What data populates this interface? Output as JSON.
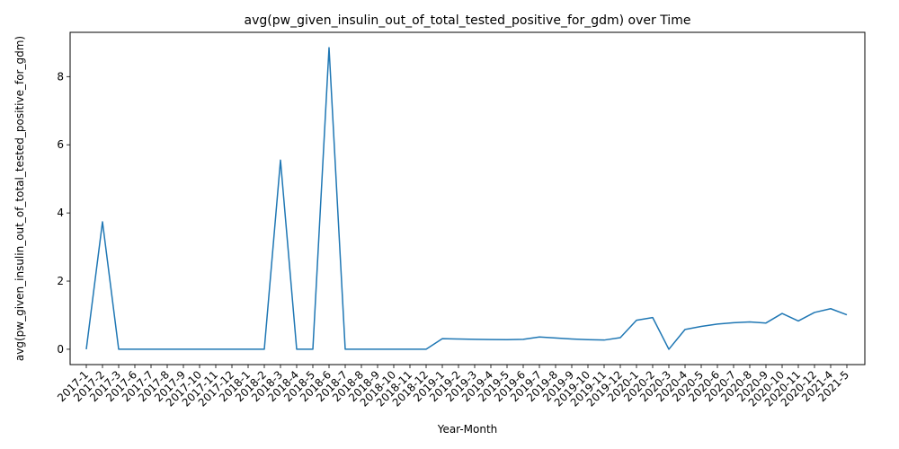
{
  "chart_data": {
    "type": "line",
    "title": "avg(pw_given_insulin_out_of_total_tested_positive_for_gdm) over Time",
    "xlabel": "Year-Month",
    "ylabel": "avg(pw_given_insulin_out_of_total_tested_positive_for_gdm)",
    "ylim": [
      -0.45,
      9.3
    ],
    "yticks": [
      0,
      2,
      4,
      6,
      8
    ],
    "grid": false,
    "color": "#1f77b4",
    "categories": [
      "2017-1",
      "2017-2",
      "2017-3",
      "2017-6",
      "2017-7",
      "2017-8",
      "2017-9",
      "2017-10",
      "2017-11",
      "2017-12",
      "2018-1",
      "2018-2",
      "2018-3",
      "2018-4",
      "2018-5",
      "2018-6",
      "2018-7",
      "2018-8",
      "2018-9",
      "2018-10",
      "2018-11",
      "2018-12",
      "2019-1",
      "2019-2",
      "2019-3",
      "2019-4",
      "2019-5",
      "2019-6",
      "2019-7",
      "2019-8",
      "2019-9",
      "2019-10",
      "2019-11",
      "2019-12",
      "2020-1",
      "2020-2",
      "2020-3",
      "2020-4",
      "2020-5",
      "2020-6",
      "2020-7",
      "2020-8",
      "2020-9",
      "2020-10",
      "2020-11",
      "2020-12",
      "2021-4",
      "2021-5"
    ],
    "values": [
      0,
      3.74,
      0,
      0,
      0,
      0,
      0,
      0,
      0,
      0,
      0,
      0,
      5.55,
      0,
      0,
      8.85,
      0,
      0,
      0,
      0,
      0,
      0,
      0.31,
      0.3,
      0.29,
      0.285,
      0.28,
      0.29,
      0.36,
      0.33,
      0.3,
      0.28,
      0.27,
      0.34,
      0.85,
      0.93,
      0,
      0.58,
      0.67,
      0.74,
      0.78,
      0.8,
      0.77,
      1.05,
      0.83,
      1.08,
      1.19,
      1.01
    ]
  }
}
